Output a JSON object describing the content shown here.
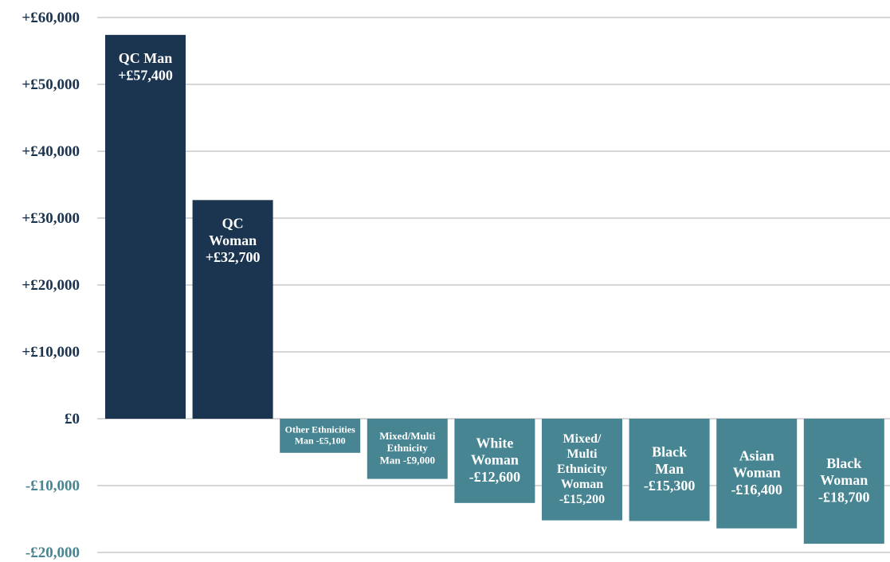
{
  "chart_data": {
    "type": "bar",
    "title": "",
    "xlabel": "",
    "ylabel": "",
    "ylim": [
      -20000,
      60000
    ],
    "grid": true,
    "legend": "none",
    "yticks": [
      {
        "value": 60000,
        "label": "+£60,000"
      },
      {
        "value": 50000,
        "label": "+£50,000"
      },
      {
        "value": 40000,
        "label": "+£40,000"
      },
      {
        "value": 30000,
        "label": "+£30,000"
      },
      {
        "value": 20000,
        "label": "+£20,000"
      },
      {
        "value": 10000,
        "label": "+£10,000"
      },
      {
        "value": 0,
        "label": "£0"
      },
      {
        "value": -10000,
        "label": "-£10,000"
      },
      {
        "value": -20000,
        "label": "-£20,000"
      }
    ],
    "categories": [
      "QC Man",
      "QC Woman",
      "Other Ethnicities Man",
      "Mixed/Multi Ethnicity Man",
      "White Woman",
      "Mixed/Multi Ethnicity Woman",
      "Black Man",
      "Asian Woman",
      "Black Woman"
    ],
    "values": [
      57400,
      32700,
      -5100,
      -9000,
      -12600,
      -15200,
      -15300,
      -16400,
      -18700
    ],
    "bar_labels": [
      [
        "QC Man",
        "+£57,400"
      ],
      [
        "QC",
        "Woman",
        "+£32,700"
      ],
      [
        "Other Ethnicities",
        "Man -£5,100"
      ],
      [
        "Mixed/Multi",
        "Ethnicity",
        "Man -£9,000"
      ],
      [
        "White",
        "Woman",
        "-£12,600"
      ],
      [
        "Mixed/",
        "Multi",
        "Ethnicity",
        "Woman",
        "-£15,200"
      ],
      [
        "Black",
        "Man",
        "-£15,300"
      ],
      [
        "Asian",
        "Woman",
        "-£16,400"
      ],
      [
        "Black",
        "Woman",
        "-£18,700"
      ]
    ],
    "colors": {
      "positive": "#1b3550",
      "negative": "#478592",
      "positive_tick": "#1b3550",
      "negative_tick": "#478592",
      "grid": "#c9c9c9"
    }
  }
}
